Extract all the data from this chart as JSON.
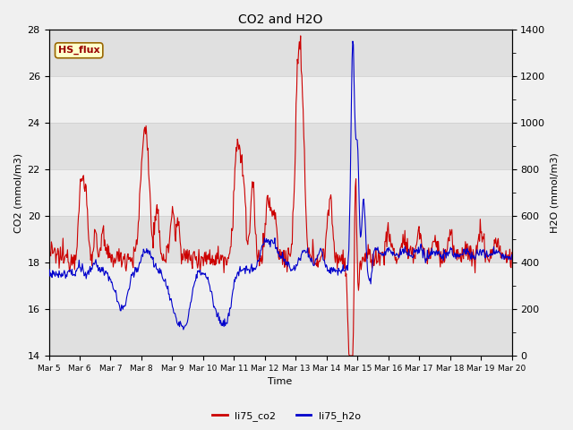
{
  "title": "CO2 and H2O",
  "xlabel": "Time",
  "ylabel_left": "CO2 (mmol/m3)",
  "ylabel_right": "H2O (mmol/m3)",
  "ylim_left": [
    14,
    28
  ],
  "ylim_right": [
    0,
    1400
  ],
  "yticks_left": [
    14,
    16,
    18,
    20,
    22,
    24,
    26,
    28
  ],
  "yticks_right": [
    0,
    200,
    400,
    600,
    800,
    1000,
    1200,
    1400
  ],
  "xtick_labels": [
    "Mar 5",
    "Mar 6",
    "Mar 7",
    "Mar 8",
    "Mar 9",
    "Mar 10",
    "Mar 11",
    "Mar 12",
    "Mar 13",
    "Mar 14",
    "Mar 15",
    "Mar 16",
    "Mar 17",
    "Mar 18",
    "Mar 19",
    "Mar 20"
  ],
  "co2_color": "#cc0000",
  "h2o_color": "#0000cc",
  "bg_color": "#e8e8e8",
  "white_band_color": "#f5f5f5",
  "grid_color": "#cccccc",
  "label_box_text": "HS_flux",
  "label_box_facecolor": "#ffffcc",
  "label_box_edgecolor": "#996600",
  "label_box_textcolor": "#990000",
  "legend_co2": "li75_co2",
  "legend_h2o": "li75_h2o",
  "co2_linewidth": 0.8,
  "h2o_linewidth": 0.8,
  "figsize": [
    6.4,
    4.8
  ],
  "dpi": 100
}
